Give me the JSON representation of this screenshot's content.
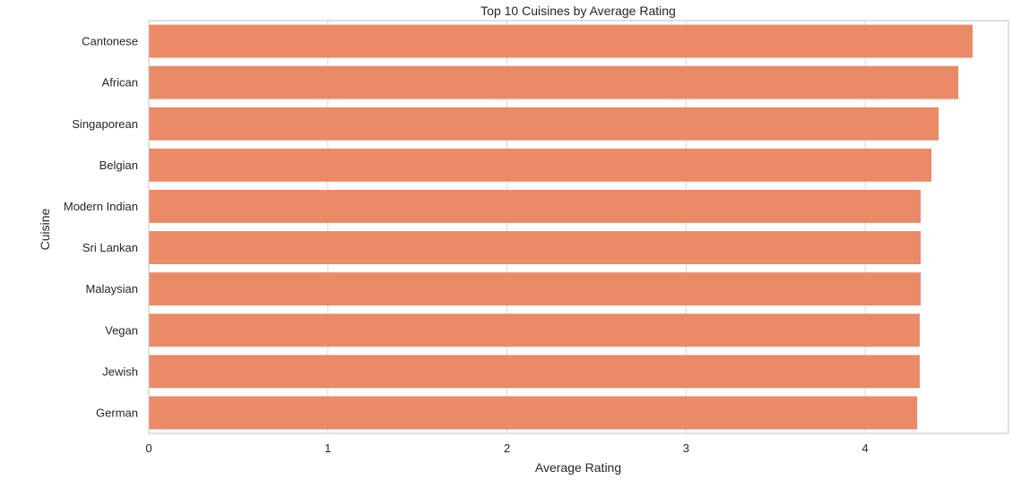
{
  "chart_data": {
    "type": "bar",
    "orientation": "horizontal",
    "title": "Top 10 Cuisines by Average Rating",
    "xlabel": "Average Rating",
    "ylabel": "Cuisine",
    "categories": [
      "Cantonese",
      "African",
      "Singaporean",
      "Belgian",
      "Modern Indian",
      "Sri Lankan",
      "Malaysian",
      "Vegan",
      "Jewish",
      "German"
    ],
    "values": [
      4.6,
      4.52,
      4.41,
      4.37,
      4.31,
      4.31,
      4.31,
      4.305,
      4.305,
      4.29
    ],
    "xlim": [
      0,
      4.8
    ],
    "xticks": [
      0,
      1,
      2,
      3,
      4
    ],
    "grid": true,
    "bar_color": "#ea8a66",
    "grid_color": "#d9d9d9",
    "frame_color": "#cccccc"
  }
}
